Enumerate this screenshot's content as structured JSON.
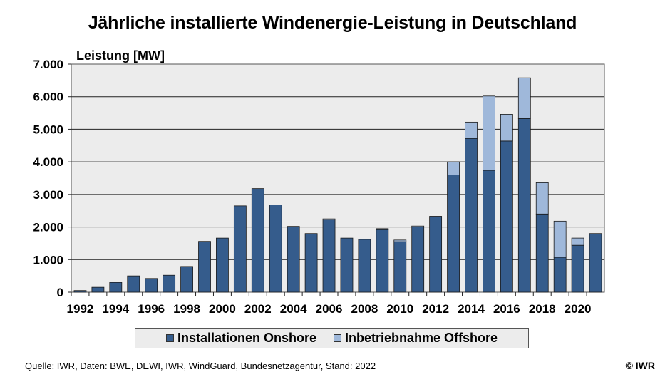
{
  "chart_data": {
    "type": "bar",
    "stacked": true,
    "title": "Jährliche installierte Windenergie-Leistung in Deutschland",
    "ylabel": "Leistung [MW]",
    "xlabel": "",
    "ylim": [
      0,
      7000
    ],
    "yticks": [
      0,
      1000,
      2000,
      3000,
      4000,
      5000,
      6000,
      7000
    ],
    "ytick_labels": [
      "0",
      "1.000",
      "2.000",
      "3.000",
      "4.000",
      "5.000",
      "6.000",
      "7.000"
    ],
    "grid": true,
    "legend_position": "bottom",
    "categories": [
      "1992",
      "1993",
      "1994",
      "1995",
      "1996",
      "1997",
      "1998",
      "1999",
      "2000",
      "2001",
      "2002",
      "2003",
      "2004",
      "2005",
      "2006",
      "2007",
      "2008",
      "2009",
      "2010",
      "2011",
      "2012",
      "2013",
      "2014",
      "2015",
      "2016",
      "2017",
      "2018",
      "2019",
      "2020",
      "2021"
    ],
    "xtick_labels": [
      "1992",
      "1994",
      "1996",
      "1998",
      "2000",
      "2002",
      "2004",
      "2006",
      "2008",
      "2010",
      "2012",
      "2014",
      "2016",
      "2018",
      "2020"
    ],
    "series": [
      {
        "name": "Installationen Onshore",
        "color": "#355c8c",
        "values": [
          50,
          150,
          300,
          500,
          420,
          520,
          790,
          1560,
          1660,
          2650,
          3180,
          2680,
          2020,
          1800,
          2220,
          1660,
          1620,
          1920,
          1550,
          2000,
          2330,
          3600,
          4720,
          3740,
          4640,
          5330,
          2400,
          1070,
          1440,
          1800
        ]
      },
      {
        "name": "Inbetriebnahme Offshore",
        "color": "#9fb8da",
        "values": [
          0,
          0,
          0,
          0,
          0,
          0,
          0,
          0,
          0,
          0,
          0,
          0,
          0,
          0,
          30,
          0,
          0,
          30,
          50,
          30,
          0,
          400,
          500,
          2280,
          820,
          1250,
          960,
          1110,
          220,
          0
        ]
      }
    ]
  },
  "footer": {
    "source": "Quelle: IWR, Daten: BWE, DEWI, IWR, WindGuard, Bundesnetzagentur, Stand: 2022",
    "copyright": "© IWR"
  }
}
